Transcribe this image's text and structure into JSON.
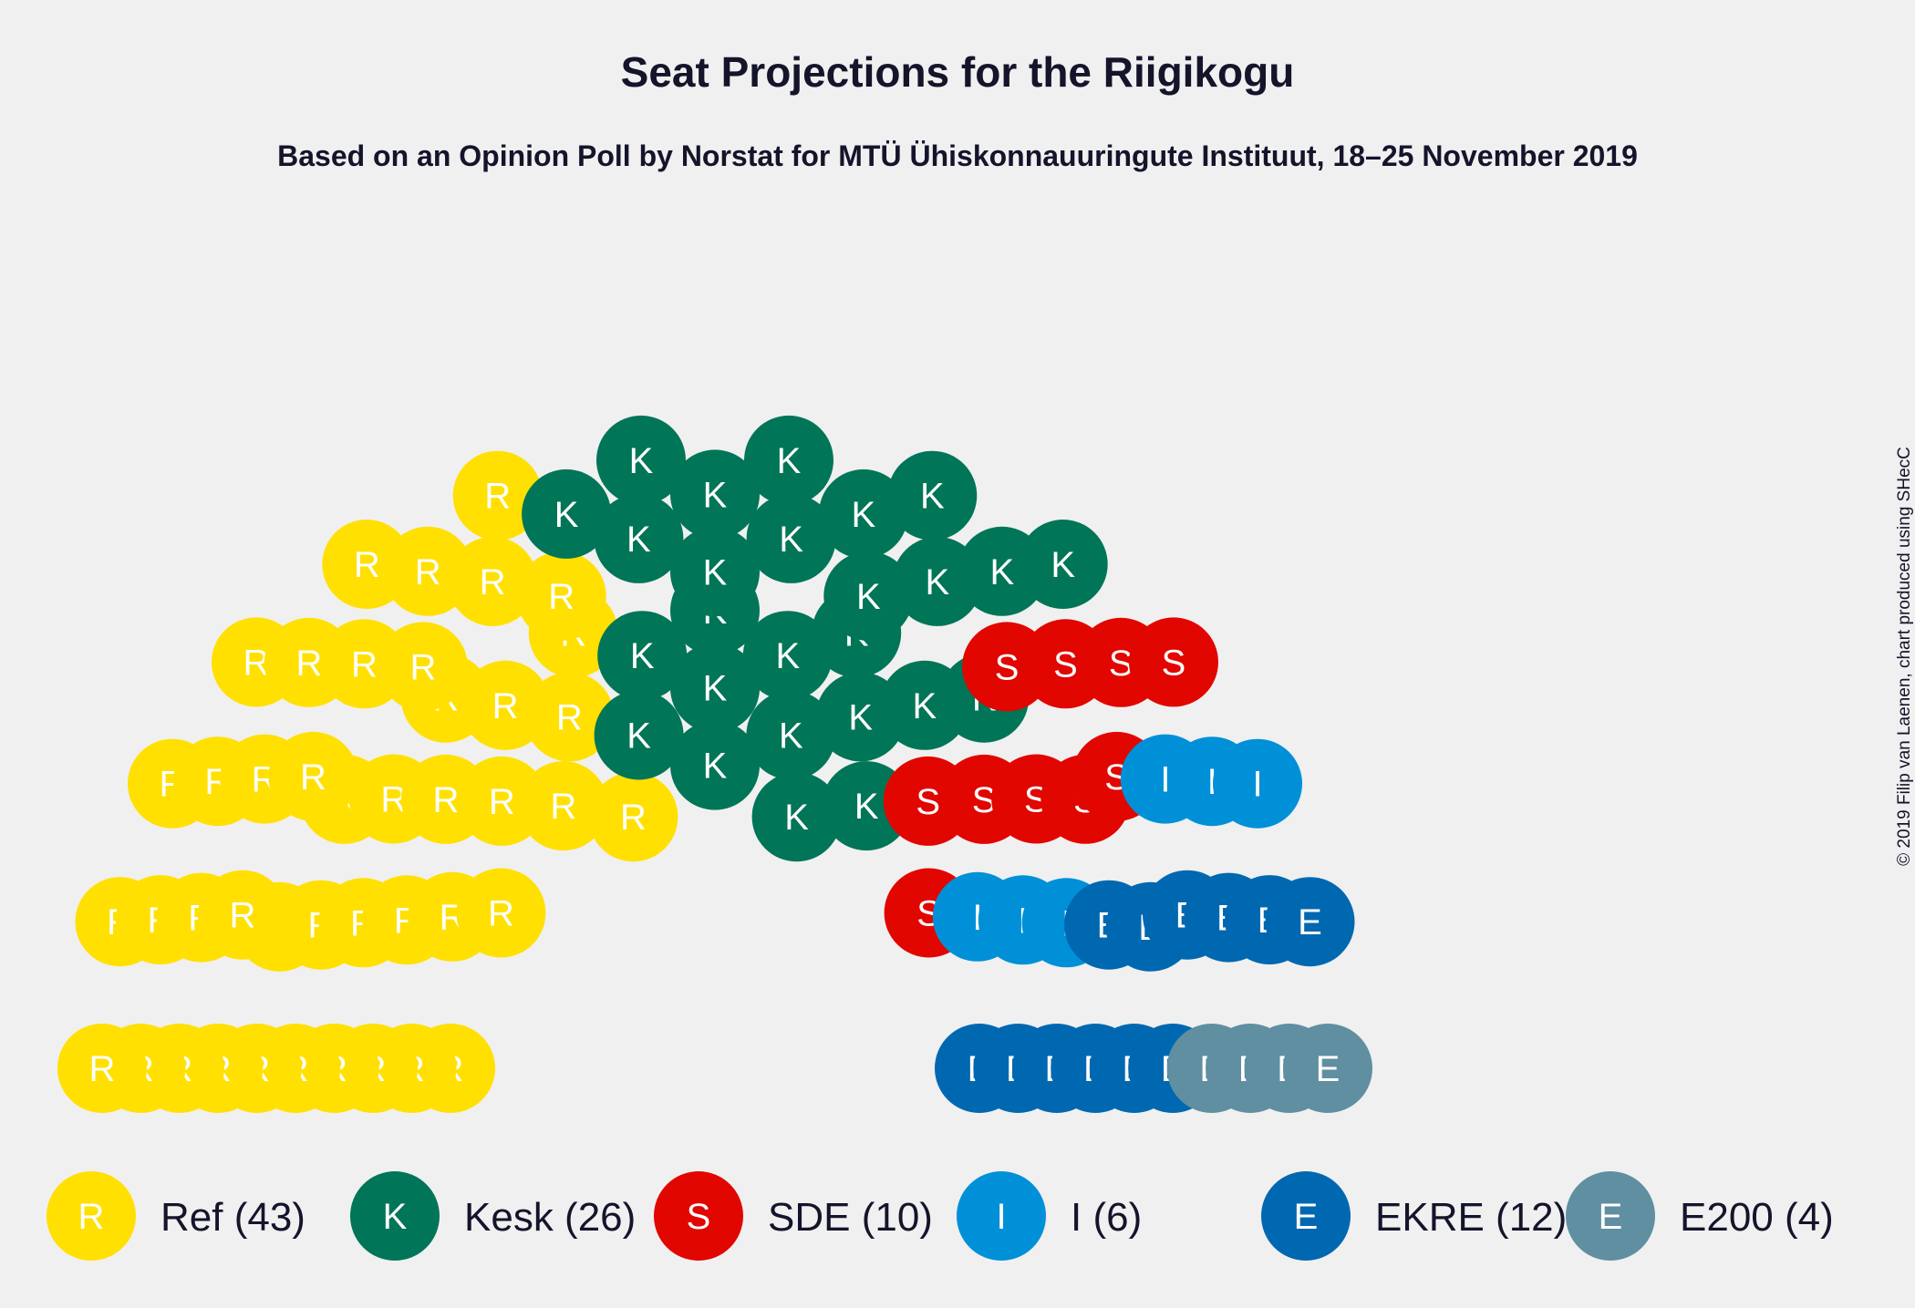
{
  "chart_data": {
    "type": "parliament",
    "title": "Seat Projections for the Riigikogu",
    "subtitle": "Based on an Opinion Poll by Norstat for MTÜ Ühiskonnauuringute Instituut, 18–25 November 2019",
    "copyright": "© 2019 Filip van Laenen, chart produced using SHecC",
    "total_seats": 101,
    "legend_placement": "bottom",
    "parties": [
      {
        "letter": "R",
        "label": "Ref (43)",
        "seats": 43,
        "color": "#FFE000"
      },
      {
        "letter": "K",
        "label": "Kesk (26)",
        "seats": 26,
        "color": "#007557"
      },
      {
        "letter": "S",
        "label": "SDE (10)",
        "seats": 10,
        "color": "#E10600"
      },
      {
        "letter": "I",
        "label": "I (6)",
        "seats": 6,
        "color": "#0090D8"
      },
      {
        "letter": "E",
        "label": "EKRE (12)",
        "seats": 12,
        "color": "#0068B0"
      },
      {
        "letter": "E",
        "label": "E200 (4)",
        "seats": 4,
        "color": "#5F8FA1"
      }
    ]
  }
}
